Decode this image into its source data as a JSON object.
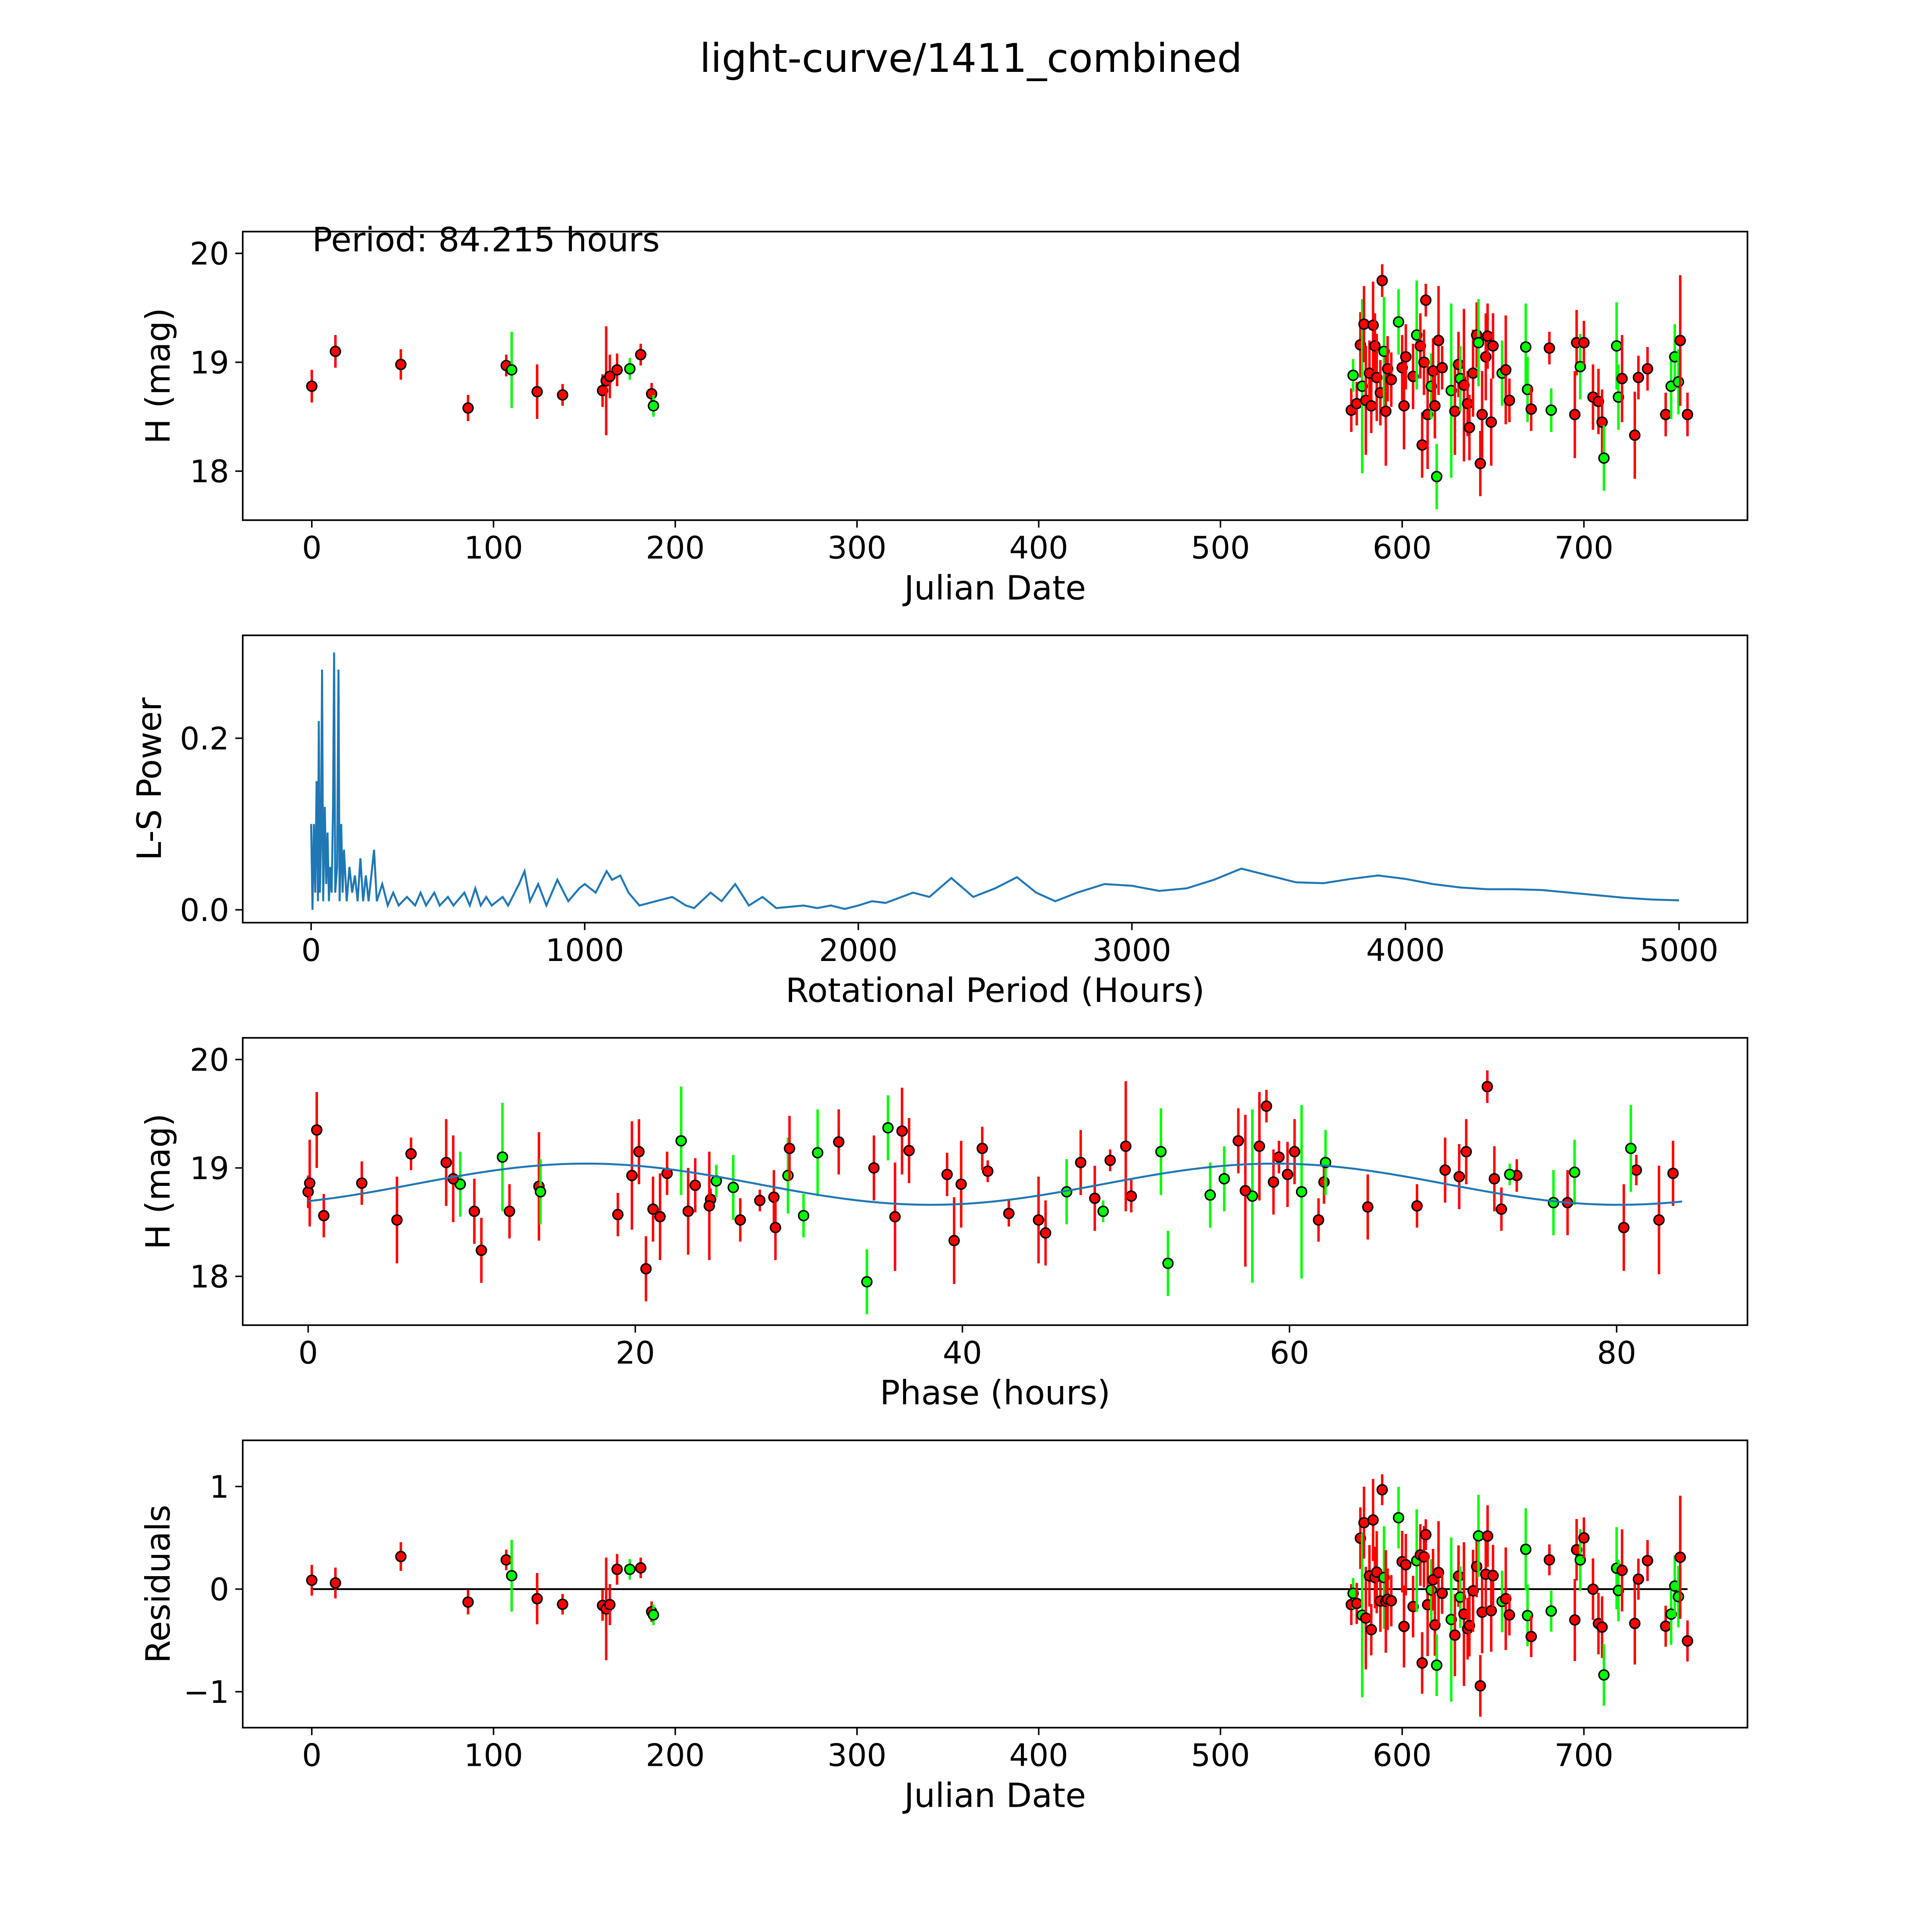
{
  "title": "light-curve/1411_combined",
  "annotation": "Period: 84.215 hours",
  "colors": {
    "r": "#ff0000",
    "g": "#00ff00",
    "model": "#1f77b4",
    "edge": "#000000"
  },
  "chart_data": [
    {
      "type": "scatter",
      "name": "light-curve",
      "xlabel": "Julian Date",
      "ylabel": "H (mag)",
      "xlim": [
        -38,
        790
      ],
      "ylim": [
        17.55,
        20.2
      ],
      "xticks": [
        0,
        100,
        200,
        300,
        400,
        500,
        600,
        700
      ],
      "yticks": [
        18,
        19,
        20
      ],
      "source": "observations"
    },
    {
      "type": "line",
      "name": "periodogram",
      "xlabel": "Rotational Period (Hours)",
      "ylabel": "L-S Power",
      "xlim": [
        -250,
        5250
      ],
      "ylim": [
        -0.015,
        0.32
      ],
      "xticks": [
        0,
        1000,
        2000,
        3000,
        4000,
        5000
      ],
      "yticks": [
        0.0,
        0.2
      ],
      "ytick_labels": [
        "0.0",
        "0.2"
      ],
      "points": [
        [
          0,
          0.1
        ],
        [
          5,
          0
        ],
        [
          10,
          0.1
        ],
        [
          15,
          0.02
        ],
        [
          20,
          0.15
        ],
        [
          25,
          0.01
        ],
        [
          28,
          0.22
        ],
        [
          32,
          0.02
        ],
        [
          36,
          0.08
        ],
        [
          40,
          0.28
        ],
        [
          44,
          0.01
        ],
        [
          50,
          0.12
        ],
        [
          55,
          0.03
        ],
        [
          60,
          0.09
        ],
        [
          65,
          0.01
        ],
        [
          70,
          0.05
        ],
        [
          75,
          0.02
        ],
        [
          80,
          0.12
        ],
        [
          84,
          0.3
        ],
        [
          88,
          0.02
        ],
        [
          95,
          0.05
        ],
        [
          100,
          0.28
        ],
        [
          104,
          0.01
        ],
        [
          110,
          0.1
        ],
        [
          115,
          0.02
        ],
        [
          120,
          0.07
        ],
        [
          130,
          0.01
        ],
        [
          140,
          0.05
        ],
        [
          150,
          0.02
        ],
        [
          160,
          0.04
        ],
        [
          170,
          0.01
        ],
        [
          180,
          0.06
        ],
        [
          190,
          0.01
        ],
        [
          200,
          0.04
        ],
        [
          210,
          0.01
        ],
        [
          230,
          0.07
        ],
        [
          240,
          0.01
        ],
        [
          260,
          0.03
        ],
        [
          280,
          0.005
        ],
        [
          300,
          0.02
        ],
        [
          320,
          0.005
        ],
        [
          350,
          0.015
        ],
        [
          380,
          0.005
        ],
        [
          400,
          0.02
        ],
        [
          420,
          0.005
        ],
        [
          450,
          0.02
        ],
        [
          470,
          0.005
        ],
        [
          500,
          0.015
        ],
        [
          520,
          0.005
        ],
        [
          560,
          0.02
        ],
        [
          580,
          0.005
        ],
        [
          600,
          0.025
        ],
        [
          620,
          0.005
        ],
        [
          640,
          0.015
        ],
        [
          660,
          0.005
        ],
        [
          700,
          0.015
        ],
        [
          720,
          0.005
        ],
        [
          760,
          0.03
        ],
        [
          780,
          0.045
        ],
        [
          800,
          0.01
        ],
        [
          830,
          0.03
        ],
        [
          860,
          0.005
        ],
        [
          880,
          0.02
        ],
        [
          900,
          0.035
        ],
        [
          940,
          0.01
        ],
        [
          980,
          0.025
        ],
        [
          1000,
          0.03
        ],
        [
          1040,
          0.02
        ],
        [
          1080,
          0.045
        ],
        [
          1100,
          0.035
        ],
        [
          1130,
          0.04
        ],
        [
          1160,
          0.02
        ],
        [
          1200,
          0.005
        ],
        [
          1260,
          0.01
        ],
        [
          1320,
          0.015
        ],
        [
          1370,
          0.005
        ],
        [
          1400,
          0.002
        ],
        [
          1460,
          0.02
        ],
        [
          1500,
          0.01
        ],
        [
          1550,
          0.03
        ],
        [
          1600,
          0.005
        ],
        [
          1650,
          0.015
        ],
        [
          1700,
          0.002
        ],
        [
          1800,
          0.005
        ],
        [
          1850,
          0.002
        ],
        [
          1900,
          0.005
        ],
        [
          1950,
          0.001
        ],
        [
          2000,
          0.005
        ],
        [
          2050,
          0.01
        ],
        [
          2100,
          0.008
        ],
        [
          2200,
          0.02
        ],
        [
          2260,
          0.015
        ],
        [
          2340,
          0.037
        ],
        [
          2420,
          0.015
        ],
        [
          2500,
          0.025
        ],
        [
          2580,
          0.038
        ],
        [
          2650,
          0.02
        ],
        [
          2720,
          0.01
        ],
        [
          2800,
          0.02
        ],
        [
          2900,
          0.03
        ],
        [
          3000,
          0.028
        ],
        [
          3100,
          0.022
        ],
        [
          3200,
          0.025
        ],
        [
          3300,
          0.035
        ],
        [
          3400,
          0.048
        ],
        [
          3500,
          0.04
        ],
        [
          3600,
          0.032
        ],
        [
          3700,
          0.031
        ],
        [
          3800,
          0.036
        ],
        [
          3900,
          0.04
        ],
        [
          4000,
          0.036
        ],
        [
          4100,
          0.03
        ],
        [
          4200,
          0.026
        ],
        [
          4300,
          0.024
        ],
        [
          4400,
          0.024
        ],
        [
          4500,
          0.023
        ],
        [
          4600,
          0.02
        ],
        [
          4700,
          0.017
        ],
        [
          4800,
          0.014
        ],
        [
          4900,
          0.012
        ],
        [
          5000,
          0.011
        ]
      ]
    },
    {
      "type": "scatter",
      "name": "phased",
      "xlabel": "Phase (hours)",
      "ylabel": "H (mag)",
      "xlim": [
        -4,
        88
      ],
      "ylim": [
        17.55,
        20.2
      ],
      "xticks": [
        0,
        20,
        40,
        60,
        80
      ],
      "yticks": [
        18,
        19,
        20
      ],
      "period_hours": 84.215,
      "model": {
        "mean": 18.85,
        "amplitude": 0.19,
        "peak_phase": 17,
        "harmonic": 2
      }
    },
    {
      "type": "scatter",
      "name": "residuals",
      "xlabel": "Julian Date",
      "ylabel": "Residuals",
      "xlim": [
        -38,
        790
      ],
      "ylim": [
        -1.35,
        1.45
      ],
      "xticks": [
        0,
        100,
        200,
        300,
        400,
        500,
        600,
        700
      ],
      "yticks": [
        -1,
        0,
        1
      ],
      "ytick_labels": [
        "−1",
        "0",
        "1"
      ]
    }
  ],
  "observations": [
    [
      0,
      18.78,
      0.15,
      "r"
    ],
    [
      13,
      19.1,
      0.15,
      "r"
    ],
    [
      49,
      18.98,
      0.14,
      "r"
    ],
    [
      86,
      18.58,
      0.12,
      "r"
    ],
    [
      107,
      18.97,
      0.1,
      "r"
    ],
    [
      110,
      18.93,
      0.35,
      "g"
    ],
    [
      124,
      18.73,
      0.25,
      "r"
    ],
    [
      138,
      18.7,
      0.1,
      "r"
    ],
    [
      160,
      18.74,
      0.15,
      "r"
    ],
    [
      162,
      18.83,
      0.5,
      "r"
    ],
    [
      164,
      18.87,
      0.2,
      "r"
    ],
    [
      168,
      18.93,
      0.15,
      "r"
    ],
    [
      175,
      18.94,
      0.1,
      "g"
    ],
    [
      181,
      19.07,
      0.1,
      "r"
    ],
    [
      187,
      18.71,
      0.1,
      "r"
    ],
    [
      188,
      18.6,
      0.1,
      "g"
    ],
    [
      572,
      18.56,
      0.2,
      "r"
    ],
    [
      573,
      18.88,
      0.15,
      "g"
    ],
    [
      575,
      18.62,
      0.2,
      "r"
    ],
    [
      577,
      19.16,
      0.3,
      "r"
    ],
    [
      578,
      18.78,
      0.8,
      "g"
    ],
    [
      579,
      19.35,
      0.35,
      "r"
    ],
    [
      580,
      18.65,
      0.5,
      "r"
    ],
    [
      582,
      18.9,
      0.3,
      "r"
    ],
    [
      583,
      18.6,
      0.25,
      "r"
    ],
    [
      584,
      19.34,
      0.4,
      "r"
    ],
    [
      585,
      19.15,
      0.3,
      "r"
    ],
    [
      586,
      18.86,
      0.4,
      "r"
    ],
    [
      588,
      18.72,
      0.3,
      "r"
    ],
    [
      589,
      19.75,
      0.15,
      "r"
    ],
    [
      590,
      19.1,
      0.5,
      "g"
    ],
    [
      591,
      18.55,
      0.5,
      "r"
    ],
    [
      592,
      18.94,
      0.3,
      "r"
    ],
    [
      594,
      18.84,
      0.25,
      "r"
    ],
    [
      598,
      19.37,
      0.3,
      "g"
    ],
    [
      600,
      18.95,
      0.3,
      "r"
    ],
    [
      601,
      18.6,
      0.4,
      "r"
    ],
    [
      602,
      19.05,
      0.3,
      "r"
    ],
    [
      606,
      18.87,
      0.3,
      "r"
    ],
    [
      608,
      19.25,
      0.5,
      "g"
    ],
    [
      610,
      19.15,
      0.3,
      "r"
    ],
    [
      611,
      18.24,
      0.3,
      "r"
    ],
    [
      612,
      19.0,
      0.3,
      "r"
    ],
    [
      613,
      19.57,
      0.15,
      "r"
    ],
    [
      614,
      18.52,
      0.5,
      "r"
    ],
    [
      616,
      18.78,
      0.3,
      "g"
    ],
    [
      617,
      18.92,
      0.3,
      "r"
    ],
    [
      618,
      18.6,
      0.3,
      "r"
    ],
    [
      619,
      17.95,
      0.3,
      "g"
    ],
    [
      620,
      19.2,
      0.5,
      "r"
    ],
    [
      622,
      18.95,
      0.2,
      "r"
    ],
    [
      627,
      18.74,
      0.8,
      "g"
    ],
    [
      629,
      18.55,
      0.4,
      "r"
    ],
    [
      631,
      18.98,
      0.3,
      "r"
    ],
    [
      632,
      18.85,
      0.3,
      "g"
    ],
    [
      634,
      18.79,
      0.7,
      "r"
    ],
    [
      636,
      18.62,
      0.3,
      "r"
    ],
    [
      637,
      18.4,
      0.3,
      "r"
    ],
    [
      639,
      18.9,
      0.4,
      "r"
    ],
    [
      641,
      19.25,
      0.3,
      "r"
    ],
    [
      642,
      19.18,
      0.4,
      "g"
    ],
    [
      643,
      18.07,
      0.3,
      "r"
    ],
    [
      644,
      18.52,
      0.4,
      "r"
    ],
    [
      646,
      19.05,
      0.4,
      "r"
    ],
    [
      647,
      19.24,
      0.3,
      "r"
    ],
    [
      649,
      18.45,
      0.4,
      "r"
    ],
    [
      650,
      19.15,
      0.3,
      "r"
    ],
    [
      655,
      18.9,
      0.3,
      "g"
    ],
    [
      657,
      18.93,
      0.5,
      "r"
    ],
    [
      659,
      18.65,
      0.2,
      "r"
    ],
    [
      668,
      19.14,
      0.4,
      "g"
    ],
    [
      669,
      18.75,
      0.3,
      "g"
    ],
    [
      671,
      18.57,
      0.2,
      "r"
    ],
    [
      681,
      19.13,
      0.15,
      "r"
    ],
    [
      682,
      18.56,
      0.2,
      "g"
    ],
    [
      695,
      18.52,
      0.4,
      "r"
    ],
    [
      696,
      19.18,
      0.3,
      "r"
    ],
    [
      698,
      18.96,
      0.3,
      "g"
    ],
    [
      700,
      19.18,
      0.2,
      "r"
    ],
    [
      705,
      18.68,
      0.3,
      "r"
    ],
    [
      708,
      18.64,
      0.3,
      "r"
    ],
    [
      710,
      18.45,
      0.3,
      "r"
    ],
    [
      711,
      18.12,
      0.3,
      "g"
    ],
    [
      718,
      19.15,
      0.4,
      "g"
    ],
    [
      719,
      18.68,
      0.3,
      "g"
    ],
    [
      721,
      18.85,
      0.4,
      "r"
    ],
    [
      728,
      18.33,
      0.4,
      "r"
    ],
    [
      730,
      18.86,
      0.2,
      "r"
    ],
    [
      735,
      18.94,
      0.2,
      "r"
    ],
    [
      745,
      18.52,
      0.2,
      "r"
    ],
    [
      748,
      18.78,
      0.3,
      "g"
    ],
    [
      750,
      19.05,
      0.3,
      "g"
    ],
    [
      752,
      18.82,
      0.3,
      "g"
    ],
    [
      753,
      19.2,
      0.6,
      "r"
    ],
    [
      757,
      18.52,
      0.2,
      "r"
    ]
  ]
}
